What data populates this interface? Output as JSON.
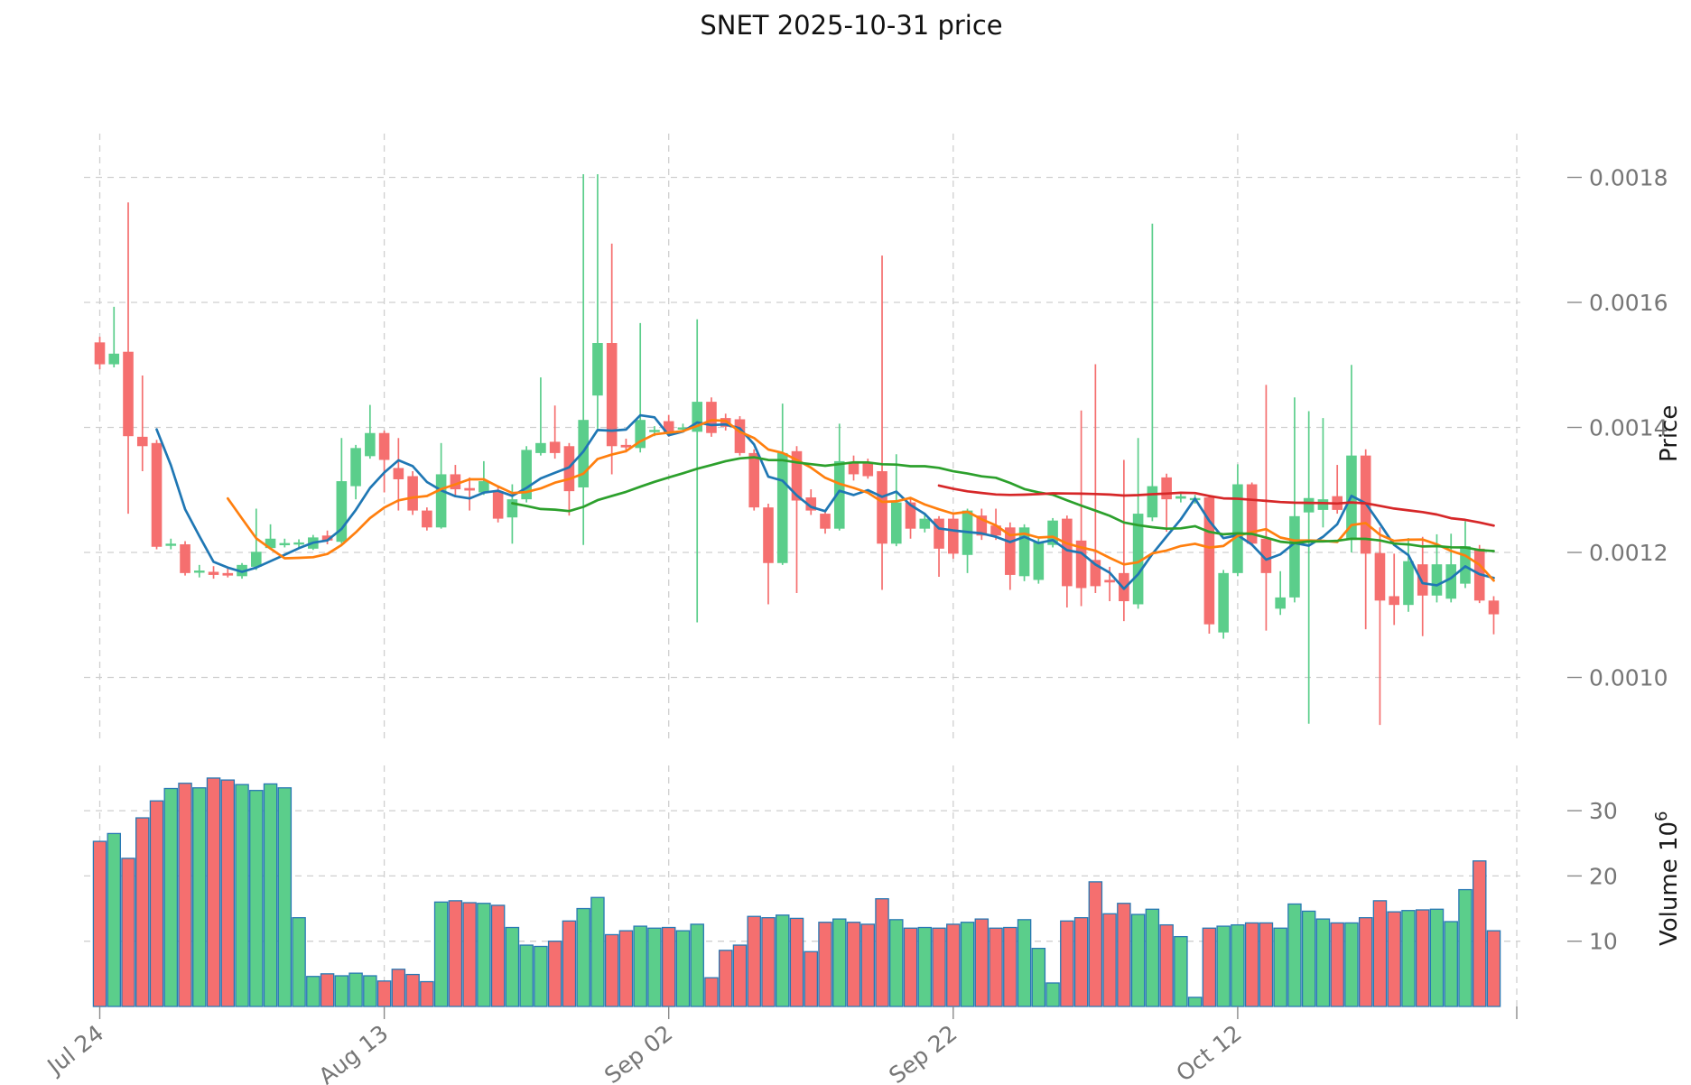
{
  "title": "SNET  2025-10-31  price",
  "chart_data": {
    "type": "candlestick",
    "title": "SNET  2025-10-31  price",
    "price_axis": {
      "label": "Price",
      "ticks": [
        0.0018,
        0.0016,
        0.0014,
        0.0012,
        0.001
      ],
      "tick_labels": [
        "0.0018",
        "0.0016",
        "0.0014",
        "0.0012",
        "0.0010"
      ]
    },
    "volume_axis": {
      "label_main": "Volume  10",
      "label_sup": "6",
      "ticks": [
        30,
        20,
        10
      ],
      "tick_labels": [
        "30",
        "20",
        "10"
      ]
    },
    "x_ticks": {
      "indices": [
        0,
        20,
        40,
        60,
        80
      ],
      "labels": [
        "Jul 24",
        "Aug 13",
        "Sep 02",
        "Sep 22",
        "Oct 12"
      ]
    },
    "grid": true,
    "legend_position": "none",
    "moving_averages": [
      {
        "name": "MA5",
        "window": 5,
        "color": "#1f77b4"
      },
      {
        "name": "MA10",
        "window": 10,
        "color": "#ff7f0e"
      },
      {
        "name": "MA30",
        "window": 30,
        "color": "#2ca02c"
      },
      {
        "name": "MA60",
        "window": 60,
        "color": "#d62728"
      }
    ],
    "colors": {
      "up": "#5BCE8B",
      "down": "#F56F6F",
      "volume_edge": "#2878B4",
      "grid": "#cfcfcf",
      "tick_text": "#767676",
      "axis_label_text": "#1a1a1a",
      "title_text": "#111111",
      "background": "#ffffff"
    },
    "candles": [
      {
        "d": "Jul 24",
        "o": 0.001536,
        "h": 0.001545,
        "l": 0.001493,
        "c": 0.001501,
        "v": 25.3
      },
      {
        "d": "Jul 25",
        "o": 0.001501,
        "h": 0.001593,
        "l": 0.001496,
        "c": 0.001518,
        "v": 26.5
      },
      {
        "d": "Jul 26",
        "o": 0.001521,
        "h": 0.00176,
        "l": 0.001262,
        "c": 0.001386,
        "v": 22.7
      },
      {
        "d": "Jul 27",
        "o": 0.001385,
        "h": 0.001483,
        "l": 0.00133,
        "c": 0.00137,
        "v": 28.9
      },
      {
        "d": "Jul 28",
        "o": 0.001375,
        "h": 0.00138,
        "l": 0.001205,
        "c": 0.001209,
        "v": 31.5
      },
      {
        "d": "Jul 29",
        "o": 0.001211,
        "h": 0.001222,
        "l": 0.001205,
        "c": 0.001214,
        "v": 33.4
      },
      {
        "d": "Jul 30",
        "o": 0.001213,
        "h": 0.001218,
        "l": 0.001163,
        "c": 0.001167,
        "v": 34.2
      },
      {
        "d": "Jul 31",
        "o": 0.001168,
        "h": 0.00118,
        "l": 0.00116,
        "c": 0.001171,
        "v": 33.5
      },
      {
        "d": "Aug 01",
        "o": 0.001169,
        "h": 0.001178,
        "l": 0.001158,
        "c": 0.001164,
        "v": 35.0
      },
      {
        "d": "Aug 02",
        "o": 0.001167,
        "h": 0.001175,
        "l": 0.00116,
        "c": 0.001163,
        "v": 34.7
      },
      {
        "d": "Aug 03",
        "o": 0.001162,
        "h": 0.001183,
        "l": 0.001158,
        "c": 0.00118,
        "v": 34.0
      },
      {
        "d": "Aug 04",
        "o": 0.001177,
        "h": 0.00127,
        "l": 0.001172,
        "c": 0.001201,
        "v": 33.1
      },
      {
        "d": "Aug 05",
        "o": 0.001207,
        "h": 0.001245,
        "l": 0.001205,
        "c": 0.001222,
        "v": 34.1
      },
      {
        "d": "Aug 06",
        "o": 0.001213,
        "h": 0.001222,
        "l": 0.001208,
        "c": 0.001215,
        "v": 33.5
      },
      {
        "d": "Aug 07",
        "o": 0.001214,
        "h": 0.001221,
        "l": 0.001207,
        "c": 0.001216,
        "v": 13.6
      },
      {
        "d": "Aug 08",
        "o": 0.001206,
        "h": 0.001228,
        "l": 0.001204,
        "c": 0.001224,
        "v": 4.6
      },
      {
        "d": "Aug 09",
        "o": 0.001227,
        "h": 0.001235,
        "l": 0.001213,
        "c": 0.001219,
        "v": 5.0
      },
      {
        "d": "Aug 10",
        "o": 0.001217,
        "h": 0.001383,
        "l": 0.001214,
        "c": 0.001314,
        "v": 4.7
      },
      {
        "d": "Aug 11",
        "o": 0.001306,
        "h": 0.001372,
        "l": 0.001285,
        "c": 0.001367,
        "v": 5.1
      },
      {
        "d": "Aug 12",
        "o": 0.001354,
        "h": 0.001436,
        "l": 0.00135,
        "c": 0.001391,
        "v": 4.7
      },
      {
        "d": "Aug 13",
        "o": 0.001391,
        "h": 0.001395,
        "l": 0.001296,
        "c": 0.001348,
        "v": 3.9
      },
      {
        "d": "Aug 14",
        "o": 0.001335,
        "h": 0.001383,
        "l": 0.001267,
        "c": 0.001317,
        "v": 5.7
      },
      {
        "d": "Aug 15",
        "o": 0.001322,
        "h": 0.00133,
        "l": 0.00126,
        "c": 0.001267,
        "v": 4.9
      },
      {
        "d": "Aug 16",
        "o": 0.001267,
        "h": 0.001272,
        "l": 0.001235,
        "c": 0.00124,
        "v": 3.8
      },
      {
        "d": "Aug 17",
        "o": 0.00124,
        "h": 0.001375,
        "l": 0.001238,
        "c": 0.001325,
        "v": 16.0
      },
      {
        "d": "Aug 18",
        "o": 0.001325,
        "h": 0.00134,
        "l": 0.00129,
        "c": 0.001301,
        "v": 16.2
      },
      {
        "d": "Aug 19",
        "o": 0.001303,
        "h": 0.00132,
        "l": 0.001267,
        "c": 0.001299,
        "v": 15.9
      },
      {
        "d": "Aug 20",
        "o": 0.001296,
        "h": 0.001346,
        "l": 0.001292,
        "c": 0.001314,
        "v": 15.8
      },
      {
        "d": "Aug 21",
        "o": 0.001298,
        "h": 0.001305,
        "l": 0.001248,
        "c": 0.001254,
        "v": 15.5
      },
      {
        "d": "Aug 22",
        "o": 0.001256,
        "h": 0.001309,
        "l": 0.001214,
        "c": 0.001285,
        "v": 12.1
      },
      {
        "d": "Aug 23",
        "o": 0.001285,
        "h": 0.00137,
        "l": 0.00128,
        "c": 0.001364,
        "v": 9.4
      },
      {
        "d": "Aug 24",
        "o": 0.001359,
        "h": 0.00148,
        "l": 0.001355,
        "c": 0.001375,
        "v": 9.2
      },
      {
        "d": "Aug 25",
        "o": 0.001377,
        "h": 0.001435,
        "l": 0.00135,
        "c": 0.001359,
        "v": 10.0
      },
      {
        "d": "Aug 26",
        "o": 0.00137,
        "h": 0.001375,
        "l": 0.001259,
        "c": 0.001298,
        "v": 13.1
      },
      {
        "d": "Aug 27",
        "o": 0.001304,
        "h": 0.001805,
        "l": 0.001212,
        "c": 0.001412,
        "v": 15.0
      },
      {
        "d": "Aug 28",
        "o": 0.001451,
        "h": 0.001805,
        "l": 0.001398,
        "c": 0.001535,
        "v": 16.7
      },
      {
        "d": "Aug 29",
        "o": 0.001535,
        "h": 0.001694,
        "l": 0.001325,
        "c": 0.00137,
        "v": 11.0
      },
      {
        "d": "Aug 30",
        "o": 0.001372,
        "h": 0.001382,
        "l": 0.00136,
        "c": 0.001368,
        "v": 11.6
      },
      {
        "d": "Aug 31",
        "o": 0.001367,
        "h": 0.001567,
        "l": 0.00136,
        "c": 0.001412,
        "v": 12.3
      },
      {
        "d": "Sep 01",
        "o": 0.001393,
        "h": 0.001402,
        "l": 0.001386,
        "c": 0.001396,
        "v": 12.0
      },
      {
        "d": "Sep 02",
        "o": 0.00141,
        "h": 0.00142,
        "l": 0.001385,
        "c": 0.001391,
        "v": 12.1
      },
      {
        "d": "Sep 03",
        "o": 0.001398,
        "h": 0.001406,
        "l": 0.001392,
        "c": 0.0014,
        "v": 11.6
      },
      {
        "d": "Sep 04",
        "o": 0.001393,
        "h": 0.001573,
        "l": 0.001088,
        "c": 0.001441,
        "v": 12.6
      },
      {
        "d": "Sep 05",
        "o": 0.001441,
        "h": 0.001448,
        "l": 0.001385,
        "c": 0.001391,
        "v": 4.4
      },
      {
        "d": "Sep 06",
        "o": 0.001415,
        "h": 0.001422,
        "l": 0.001395,
        "c": 0.001401,
        "v": 8.6
      },
      {
        "d": "Sep 07",
        "o": 0.001413,
        "h": 0.001418,
        "l": 0.001355,
        "c": 0.001359,
        "v": 9.4
      },
      {
        "d": "Sep 08",
        "o": 0.001359,
        "h": 0.001365,
        "l": 0.001267,
        "c": 0.001272,
        "v": 13.8
      },
      {
        "d": "Sep 09",
        "o": 0.001272,
        "h": 0.001278,
        "l": 0.001117,
        "c": 0.001183,
        "v": 13.6
      },
      {
        "d": "Sep 10",
        "o": 0.001183,
        "h": 0.001438,
        "l": 0.00118,
        "c": 0.001359,
        "v": 14.0
      },
      {
        "d": "Sep 11",
        "o": 0.001362,
        "h": 0.00137,
        "l": 0.001135,
        "c": 0.001283,
        "v": 13.5
      },
      {
        "d": "Sep 12",
        "o": 0.001288,
        "h": 0.001301,
        "l": 0.00126,
        "c": 0.001267,
        "v": 8.4
      },
      {
        "d": "Sep 13",
        "o": 0.001262,
        "h": 0.001268,
        "l": 0.00123,
        "c": 0.001238,
        "v": 12.9
      },
      {
        "d": "Sep 14",
        "o": 0.001238,
        "h": 0.001406,
        "l": 0.001235,
        "c": 0.001346,
        "v": 13.4
      },
      {
        "d": "Sep 15",
        "o": 0.001343,
        "h": 0.001355,
        "l": 0.001315,
        "c": 0.001325,
        "v": 12.9
      },
      {
        "d": "Sep 16",
        "o": 0.001343,
        "h": 0.00135,
        "l": 0.001318,
        "c": 0.001322,
        "v": 12.6
      },
      {
        "d": "Sep 17",
        "o": 0.00133,
        "h": 0.001675,
        "l": 0.00114,
        "c": 0.001214,
        "v": 16.5
      },
      {
        "d": "Sep 18",
        "o": 0.001214,
        "h": 0.001357,
        "l": 0.00121,
        "c": 0.00128,
        "v": 13.3
      },
      {
        "d": "Sep 19",
        "o": 0.00128,
        "h": 0.001285,
        "l": 0.001222,
        "c": 0.001238,
        "v": 12.0
      },
      {
        "d": "Sep 20",
        "o": 0.001238,
        "h": 0.00126,
        "l": 0.001232,
        "c": 0.001254,
        "v": 12.1
      },
      {
        "d": "Sep 21",
        "o": 0.001254,
        "h": 0.001258,
        "l": 0.001161,
        "c": 0.001206,
        "v": 12.0
      },
      {
        "d": "Sep 22",
        "o": 0.001254,
        "h": 0.00126,
        "l": 0.00119,
        "c": 0.001198,
        "v": 12.6
      },
      {
        "d": "Sep 23",
        "o": 0.001196,
        "h": 0.00127,
        "l": 0.001167,
        "c": 0.001267,
        "v": 12.9
      },
      {
        "d": "Sep 24",
        "o": 0.001259,
        "h": 0.00127,
        "l": 0.00122,
        "c": 0.001227,
        "v": 13.4
      },
      {
        "d": "Sep 25",
        "o": 0.001243,
        "h": 0.00127,
        "l": 0.00122,
        "c": 0.001227,
        "v": 12.0
      },
      {
        "d": "Sep 26",
        "o": 0.00124,
        "h": 0.001248,
        "l": 0.00114,
        "c": 0.001164,
        "v": 12.1
      },
      {
        "d": "Sep 27",
        "o": 0.001162,
        "h": 0.001245,
        "l": 0.001154,
        "c": 0.00124,
        "v": 13.3
      },
      {
        "d": "Sep 28",
        "o": 0.001156,
        "h": 0.001222,
        "l": 0.00115,
        "c": 0.001217,
        "v": 8.9
      },
      {
        "d": "Sep 29",
        "o": 0.001212,
        "h": 0.001255,
        "l": 0.001208,
        "c": 0.001251,
        "v": 3.6
      },
      {
        "d": "Sep 30",
        "o": 0.001254,
        "h": 0.001259,
        "l": 0.001112,
        "c": 0.001146,
        "v": 13.1
      },
      {
        "d": "Oct 01",
        "o": 0.001219,
        "h": 0.001427,
        "l": 0.001114,
        "c": 0.001143,
        "v": 13.6
      },
      {
        "d": "Oct 02",
        "o": 0.001188,
        "h": 0.001501,
        "l": 0.001135,
        "c": 0.001146,
        "v": 19.1
      },
      {
        "d": "Oct 03",
        "o": 0.001156,
        "h": 0.001177,
        "l": 0.001122,
        "c": 0.001152,
        "v": 14.2
      },
      {
        "d": "Oct 04",
        "o": 0.001167,
        "h": 0.001348,
        "l": 0.00109,
        "c": 0.001122,
        "v": 15.8
      },
      {
        "d": "Oct 05",
        "o": 0.001117,
        "h": 0.001383,
        "l": 0.00111,
        "c": 0.001262,
        "v": 14.1
      },
      {
        "d": "Oct 06",
        "o": 0.001256,
        "h": 0.001726,
        "l": 0.00125,
        "c": 0.001306,
        "v": 14.9
      },
      {
        "d": "Oct 07",
        "o": 0.00132,
        "h": 0.001326,
        "l": 0.001233,
        "c": 0.001285,
        "v": 12.5
      },
      {
        "d": "Oct 08",
        "o": 0.001286,
        "h": 0.001295,
        "l": 0.00128,
        "c": 0.00129,
        "v": 10.7
      },
      {
        "d": "Oct 09",
        "o": 0.001284,
        "h": 0.001292,
        "l": 0.001278,
        "c": 0.001287,
        "v": 1.4
      },
      {
        "d": "Oct 10",
        "o": 0.001288,
        "h": 0.001292,
        "l": 0.00107,
        "c": 0.001085,
        "v": 12.0
      },
      {
        "d": "Oct 11",
        "o": 0.001072,
        "h": 0.001172,
        "l": 0.001062,
        "c": 0.001167,
        "v": 12.3
      },
      {
        "d": "Oct 12",
        "o": 0.001167,
        "h": 0.001341,
        "l": 0.001162,
        "c": 0.001309,
        "v": 12.5
      },
      {
        "d": "Oct 13",
        "o": 0.001309,
        "h": 0.001312,
        "l": 0.00121,
        "c": 0.001214,
        "v": 12.8
      },
      {
        "d": "Oct 14",
        "o": 0.001222,
        "h": 0.001468,
        "l": 0.001075,
        "c": 0.001167,
        "v": 12.8
      },
      {
        "d": "Oct 15",
        "o": 0.00111,
        "h": 0.00117,
        "l": 0.0011,
        "c": 0.001128,
        "v": 12.0
      },
      {
        "d": "Oct 16",
        "o": 0.001128,
        "h": 0.001448,
        "l": 0.00112,
        "c": 0.001258,
        "v": 15.7
      },
      {
        "d": "Oct 17",
        "o": 0.001264,
        "h": 0.001426,
        "l": 0.000926,
        "c": 0.001287,
        "v": 14.6
      },
      {
        "d": "Oct 18",
        "o": 0.001268,
        "h": 0.001415,
        "l": 0.00124,
        "c": 0.001285,
        "v": 13.4
      },
      {
        "d": "Oct 19",
        "o": 0.00129,
        "h": 0.00134,
        "l": 0.001262,
        "c": 0.001268,
        "v": 12.8
      },
      {
        "d": "Oct 20",
        "o": 0.00122,
        "h": 0.0015,
        "l": 0.0012,
        "c": 0.001355,
        "v": 12.8
      },
      {
        "d": "Oct 21",
        "o": 0.001355,
        "h": 0.001365,
        "l": 0.001077,
        "c": 0.001198,
        "v": 13.6
      },
      {
        "d": "Oct 22",
        "o": 0.001199,
        "h": 0.00124,
        "l": 0.000924,
        "c": 0.001123,
        "v": 16.2
      },
      {
        "d": "Oct 23",
        "o": 0.00113,
        "h": 0.001198,
        "l": 0.001084,
        "c": 0.001116,
        "v": 14.5
      },
      {
        "d": "Oct 24",
        "o": 0.001116,
        "h": 0.001223,
        "l": 0.001105,
        "c": 0.001186,
        "v": 14.7
      },
      {
        "d": "Oct 25",
        "o": 0.001181,
        "h": 0.001225,
        "l": 0.001066,
        "c": 0.001131,
        "v": 14.8
      },
      {
        "d": "Oct 26",
        "o": 0.001131,
        "h": 0.001229,
        "l": 0.00112,
        "c": 0.001181,
        "v": 14.9
      },
      {
        "d": "Oct 27",
        "o": 0.001126,
        "h": 0.00123,
        "l": 0.00112,
        "c": 0.001181,
        "v": 13.0
      },
      {
        "d": "Oct 28",
        "o": 0.00115,
        "h": 0.00125,
        "l": 0.001143,
        "c": 0.00121,
        "v": 17.9
      },
      {
        "d": "Oct 30",
        "o": 0.001206,
        "h": 0.001212,
        "l": 0.001119,
        "c": 0.001123,
        "v": 22.3
      },
      {
        "d": "Oct 31",
        "o": 0.001123,
        "h": 0.00113,
        "l": 0.001069,
        "c": 0.001101,
        "v": 11.6
      }
    ]
  }
}
